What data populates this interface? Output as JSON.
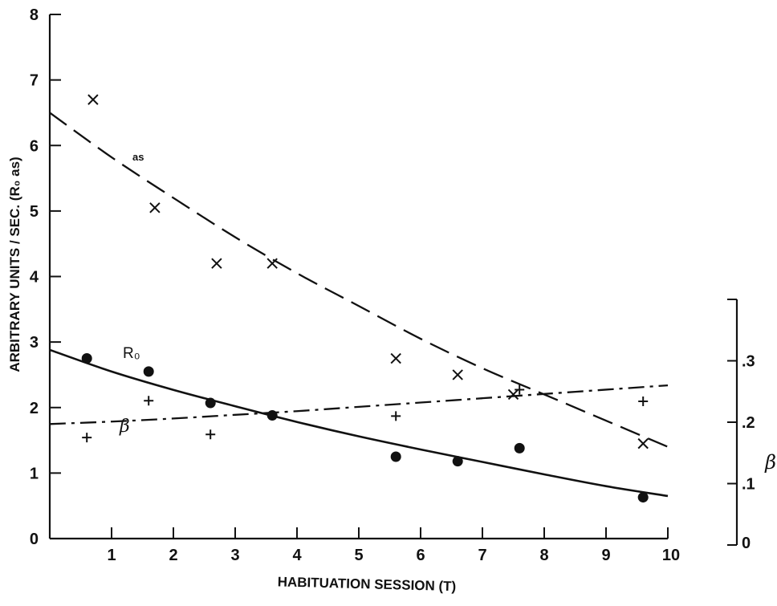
{
  "chart_data": {
    "type": "line",
    "xlabel": "HABITUATION SESSION (T)",
    "ylabel": "ARBITRARY UNITS / SEC. (R₀ as)",
    "y2label": "β",
    "xlim": [
      0,
      10
    ],
    "ylim": [
      0,
      8
    ],
    "y2lim": [
      0,
      0.4
    ],
    "x_ticks": [
      1,
      2,
      3,
      4,
      5,
      6,
      7,
      8,
      9,
      10
    ],
    "x_tick_labels": [
      "1",
      "2",
      "3",
      "4",
      "5",
      "6",
      "7",
      "8",
      "9",
      "10"
    ],
    "y_ticks": [
      0,
      1,
      2,
      3,
      4,
      5,
      6,
      7,
      8
    ],
    "y_tick_labels": [
      "0",
      "1",
      "2",
      "3",
      "4",
      "5",
      "6",
      "7",
      "8"
    ],
    "y2_ticks": [
      0,
      0.1,
      0.2,
      0.3
    ],
    "y2_tick_labels": [
      "0",
      ".1",
      ".2",
      ".3"
    ],
    "grid": false,
    "series": [
      {
        "name": "as",
        "marker": "x",
        "axis": "left",
        "line_style": "long-dash",
        "points": [
          {
            "x": 0.7,
            "y": 6.7
          },
          {
            "x": 1.7,
            "y": 5.05
          },
          {
            "x": 2.7,
            "y": 4.2
          },
          {
            "x": 3.6,
            "y": 4.2
          },
          {
            "x": 5.6,
            "y": 2.75
          },
          {
            "x": 6.6,
            "y": 2.5
          },
          {
            "x": 7.5,
            "y": 2.2
          },
          {
            "x": 9.6,
            "y": 1.45
          }
        ],
        "fit": [
          {
            "x": 0,
            "y": 6.5
          },
          {
            "x": 1,
            "y": 5.82
          },
          {
            "x": 2,
            "y": 5.2
          },
          {
            "x": 3,
            "y": 4.6
          },
          {
            "x": 4,
            "y": 4.05
          },
          {
            "x": 5,
            "y": 3.55
          },
          {
            "x": 6,
            "y": 3.05
          },
          {
            "x": 7,
            "y": 2.6
          },
          {
            "x": 8,
            "y": 2.2
          },
          {
            "x": 9,
            "y": 1.8
          },
          {
            "x": 10,
            "y": 1.4
          }
        ]
      },
      {
        "name": "R₀",
        "marker": "dot",
        "axis": "left",
        "line_style": "solid",
        "points": [
          {
            "x": 0.6,
            "y": 2.75
          },
          {
            "x": 1.6,
            "y": 2.55
          },
          {
            "x": 2.6,
            "y": 2.07
          },
          {
            "x": 3.6,
            "y": 1.88
          },
          {
            "x": 5.6,
            "y": 1.25
          },
          {
            "x": 6.6,
            "y": 1.18
          },
          {
            "x": 7.6,
            "y": 1.38
          },
          {
            "x": 9.6,
            "y": 0.63
          }
        ],
        "fit": [
          {
            "x": 0,
            "y": 2.88
          },
          {
            "x": 1,
            "y": 2.55
          },
          {
            "x": 2,
            "y": 2.27
          },
          {
            "x": 3,
            "y": 2.02
          },
          {
            "x": 4,
            "y": 1.78
          },
          {
            "x": 5,
            "y": 1.56
          },
          {
            "x": 6,
            "y": 1.36
          },
          {
            "x": 7,
            "y": 1.17
          },
          {
            "x": 8,
            "y": 0.98
          },
          {
            "x": 9,
            "y": 0.8
          },
          {
            "x": 10,
            "y": 0.65
          }
        ]
      },
      {
        "name": "β",
        "marker": "plus",
        "axis": "right",
        "line_style": "dash-dot",
        "points": [
          {
            "x": 0.6,
            "y": 0.175
          },
          {
            "x": 1.6,
            "y": 0.235
          },
          {
            "x": 2.6,
            "y": 0.18
          },
          {
            "x": 5.6,
            "y": 0.21
          },
          {
            "x": 7.6,
            "y": 0.253
          },
          {
            "x": 9.6,
            "y": 0.234
          }
        ],
        "fit": [
          {
            "x": 0,
            "y": 0.197
          },
          {
            "x": 1,
            "y": 0.201
          },
          {
            "x": 2,
            "y": 0.206
          },
          {
            "x": 3,
            "y": 0.212
          },
          {
            "x": 4,
            "y": 0.218
          },
          {
            "x": 5,
            "y": 0.225
          },
          {
            "x": 6,
            "y": 0.232
          },
          {
            "x": 7,
            "y": 0.239
          },
          {
            "x": 8,
            "y": 0.246
          },
          {
            "x": 9,
            "y": 0.253
          },
          {
            "x": 10,
            "y": 0.26
          }
        ]
      }
    ]
  }
}
